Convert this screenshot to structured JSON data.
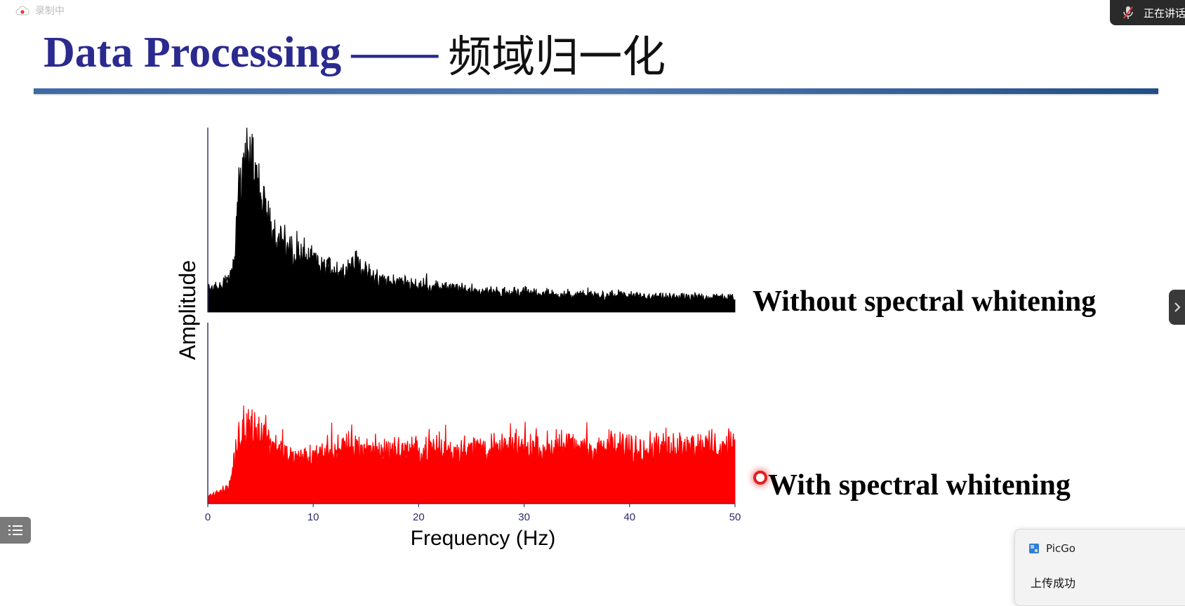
{
  "recording": {
    "status_text": "录制中",
    "icon": "cloud-recording-icon",
    "color": "#e53935"
  },
  "slide": {
    "title_en": "Data Processing",
    "title_dash": "——",
    "title_cn": "频域归一化"
  },
  "chart_data": {
    "type": "line",
    "title": "",
    "xlabel": "Frequency (Hz)",
    "ylabel": "Amplitude",
    "xlim": [
      0,
      50
    ],
    "x_ticks": [
      "0",
      "10",
      "20",
      "30",
      "40",
      "50"
    ],
    "grid": false,
    "series": [
      {
        "name": "Without spectral whitening",
        "color": "#000000",
        "x": [
          0,
          1,
          2,
          2.5,
          3,
          3.5,
          4,
          4.5,
          5,
          5.5,
          6,
          7,
          8,
          9,
          10,
          11,
          12,
          13,
          14,
          15,
          16,
          18,
          20,
          22,
          25,
          28,
          30,
          32,
          35,
          38,
          40,
          42,
          45,
          48,
          50
        ],
        "values": [
          0.14,
          0.16,
          0.18,
          0.3,
          0.8,
          0.95,
          0.9,
          0.88,
          0.7,
          0.62,
          0.52,
          0.42,
          0.36,
          0.34,
          0.3,
          0.28,
          0.26,
          0.24,
          0.3,
          0.24,
          0.2,
          0.18,
          0.16,
          0.15,
          0.13,
          0.12,
          0.12,
          0.11,
          0.1,
          0.1,
          0.1,
          0.09,
          0.09,
          0.09,
          0.09
        ]
      },
      {
        "name": "With spectral whitening",
        "color": "#ff0000",
        "x": [
          0,
          1,
          2,
          2.5,
          3,
          4,
          5,
          6,
          8,
          10,
          12,
          14,
          16,
          18,
          20,
          25,
          30,
          35,
          40,
          45,
          48,
          50
        ],
        "values": [
          0.05,
          0.07,
          0.1,
          0.25,
          0.42,
          0.48,
          0.45,
          0.38,
          0.28,
          0.3,
          0.34,
          0.36,
          0.33,
          0.32,
          0.33,
          0.34,
          0.35,
          0.34,
          0.35,
          0.36,
          0.36,
          0.35
        ]
      }
    ]
  },
  "pointer": {
    "color": "#e41e1e"
  },
  "meeting": {
    "speaking_text": "正在讲话",
    "mic_icon": "mic-muted-icon"
  },
  "side_panel": {
    "toggle_icon": "chevron-right-icon"
  },
  "toc": {
    "icon": "list-icon"
  },
  "notification": {
    "app_name": "PicGo",
    "app_icon": "picgo-icon",
    "message": "上传成功"
  }
}
